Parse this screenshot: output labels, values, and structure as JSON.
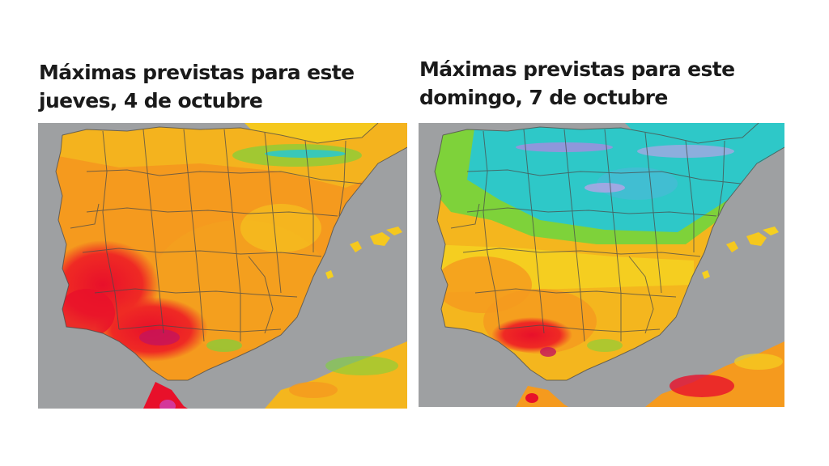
{
  "panels": [
    {
      "title_line1": "Máximas previstas para este",
      "title_line2": "jueves, 4 de octubre"
    },
    {
      "title_line1": "Máximas previstas para este",
      "title_line2": "domingo, 7 de octubre"
    }
  ],
  "colors": {
    "sea": "#9ea0a2",
    "hot_red": "#ee2222",
    "orange": "#f59a1e",
    "yellow": "#f5d020",
    "green": "#7ed23a",
    "cyan": "#2ec8c8",
    "magenta": "#d4379a",
    "borders": "#555555"
  }
}
